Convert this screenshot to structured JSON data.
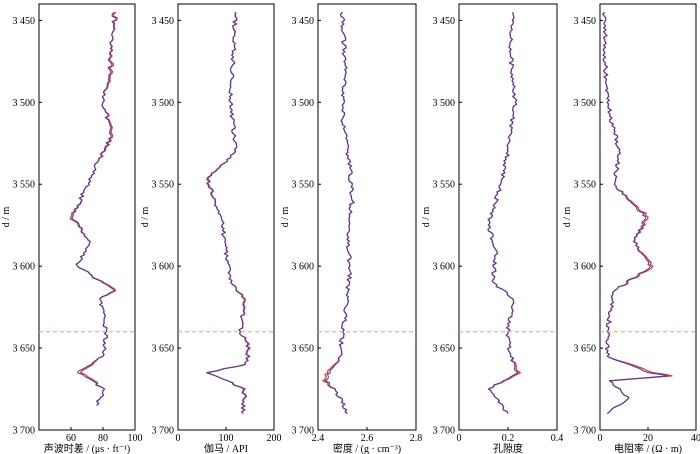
{
  "chart_data": [
    {
      "type": "line",
      "ylabel": "d / m",
      "xlabel": "声波时差 / (μs · ft⁻¹)",
      "xlim": [
        40,
        100
      ],
      "ylim": [
        3700,
        3440
      ],
      "xticks": [
        "60",
        "80",
        "100"
      ],
      "xtick_values": [
        60,
        80,
        100
      ],
      "yticks": [
        "3 450",
        "3 500",
        "3 550",
        "3 600",
        "3 650",
        "3 700"
      ],
      "ytick_values": [
        3450,
        3500,
        3550,
        3600,
        3650,
        3700
      ],
      "series": [
        {
          "color": "#e8342b",
          "d": [
            3445,
            3460,
            3480,
            3500,
            3520,
            3540,
            3555,
            3570,
            3585,
            3600,
            3615,
            3620,
            3640,
            3655,
            3665,
            3675,
            3685
          ],
          "value": [
            88,
            86,
            85,
            80,
            86,
            75,
            68,
            60,
            72,
            64,
            88,
            78,
            82,
            80,
            66,
            81,
            76
          ]
        },
        {
          "color": "#3b3fb6",
          "d": [
            3445,
            3460,
            3480,
            3500,
            3520,
            3540,
            3555,
            3570,
            3585,
            3600,
            3615,
            3620,
            3640,
            3655,
            3665,
            3675,
            3685
          ],
          "value": [
            87,
            86,
            84,
            80,
            85,
            75,
            68,
            61,
            72,
            64,
            87,
            78,
            82,
            80,
            64,
            81,
            76
          ]
        }
      ]
    },
    {
      "type": "line",
      "ylabel": "d / m",
      "xlabel": "伽马 / API",
      "xlim": [
        0,
        200
      ],
      "ylim": [
        3700,
        3440
      ],
      "xticks": [
        "0",
        "100",
        "200"
      ],
      "xtick_values": [
        0,
        100,
        200
      ],
      "yticks": [
        "3 450",
        "3 500",
        "3 550",
        "3 600",
        "3 650",
        "3 700"
      ],
      "ytick_values": [
        3450,
        3500,
        3550,
        3600,
        3650,
        3700
      ],
      "series": [
        {
          "color": "#e8342b",
          "d": [
            3445,
            3470,
            3500,
            3530,
            3547,
            3570,
            3590,
            3610,
            3620,
            3640,
            3650,
            3660,
            3665,
            3675,
            3690
          ],
          "value": [
            120,
            115,
            110,
            120,
            60,
            90,
            100,
            110,
            140,
            130,
            150,
            140,
            60,
            140,
            135
          ]
        },
        {
          "color": "#3b3fb6",
          "d": [
            3445,
            3470,
            3500,
            3530,
            3547,
            3570,
            3590,
            3610,
            3620,
            3640,
            3650,
            3660,
            3665,
            3675,
            3690
          ],
          "value": [
            119,
            115,
            110,
            120,
            62,
            90,
            100,
            110,
            138,
            130,
            148,
            140,
            60,
            138,
            135
          ]
        }
      ]
    },
    {
      "type": "line",
      "ylabel": "d / m",
      "xlabel": "密度 / (g · cm⁻³)",
      "xlim": [
        2.4,
        2.8
      ],
      "ylim": [
        3700,
        3440
      ],
      "xticks": [
        "2.4",
        "2.6",
        "2.8"
      ],
      "xtick_values": [
        2.4,
        2.6,
        2.8
      ],
      "yticks": [
        "3 450",
        "3 500",
        "3 550",
        "3 600",
        "3 650",
        "3 700"
      ],
      "ytick_values": [
        3450,
        3500,
        3550,
        3600,
        3650,
        3700
      ],
      "series": [
        {
          "color": "#e8342b",
          "d": [
            3445,
            3480,
            3510,
            3540,
            3560,
            3580,
            3600,
            3620,
            3640,
            3655,
            3665,
            3670,
            3675,
            3690
          ],
          "value": [
            2.5,
            2.51,
            2.5,
            2.53,
            2.54,
            2.52,
            2.53,
            2.52,
            2.5,
            2.49,
            2.44,
            2.42,
            2.47,
            2.52
          ]
        },
        {
          "color": "#3b3fb6",
          "d": [
            3445,
            3480,
            3510,
            3540,
            3560,
            3580,
            3600,
            3620,
            3640,
            3655,
            3665,
            3670,
            3675,
            3690
          ],
          "value": [
            2.5,
            2.51,
            2.5,
            2.53,
            2.54,
            2.52,
            2.53,
            2.52,
            2.5,
            2.49,
            2.45,
            2.43,
            2.47,
            2.52
          ]
        }
      ]
    },
    {
      "type": "line",
      "ylabel": "d / m",
      "xlabel": "孔隙度",
      "xlim": [
        0,
        0.4
      ],
      "ylim": [
        3700,
        3440
      ],
      "xticks": [
        "0",
        "0.2",
        "0.4"
      ],
      "xtick_values": [
        0,
        0.2,
        0.4
      ],
      "yticks": [
        "3 450",
        "3 500",
        "3 550",
        "3 600",
        "3 650",
        "3 700"
      ],
      "ytick_values": [
        3450,
        3500,
        3550,
        3600,
        3650,
        3700
      ],
      "series": [
        {
          "color": "#e8342b",
          "d": [
            3445,
            3470,
            3500,
            3530,
            3550,
            3575,
            3590,
            3610,
            3620,
            3640,
            3655,
            3665,
            3675,
            3690
          ],
          "value": [
            0.22,
            0.21,
            0.23,
            0.2,
            0.17,
            0.12,
            0.15,
            0.14,
            0.22,
            0.2,
            0.21,
            0.25,
            0.12,
            0.2
          ]
        },
        {
          "color": "#3b3fb6",
          "d": [
            3445,
            3470,
            3500,
            3530,
            3550,
            3575,
            3590,
            3610,
            3620,
            3640,
            3655,
            3665,
            3675,
            3690
          ],
          "value": [
            0.22,
            0.21,
            0.23,
            0.2,
            0.17,
            0.12,
            0.15,
            0.14,
            0.22,
            0.2,
            0.21,
            0.24,
            0.12,
            0.2
          ]
        }
      ]
    },
    {
      "type": "line",
      "ylabel": "d / m",
      "xlabel": "电阻率 / (Ω · m)",
      "xlim": [
        0,
        40
      ],
      "ylim": [
        3700,
        3440
      ],
      "xticks": [
        "0",
        "20",
        "40"
      ],
      "xtick_values": [
        0,
        20,
        40
      ],
      "yticks": [
        "3 450",
        "3 500",
        "3 550",
        "3 600",
        "3 650",
        "3 700"
      ],
      "ytick_values": [
        3450,
        3500,
        3550,
        3600,
        3650,
        3700
      ],
      "series": [
        {
          "color": "#e8342b",
          "d": [
            3445,
            3470,
            3500,
            3530,
            3550,
            3570,
            3585,
            3600,
            3615,
            3640,
            3655,
            3665,
            3667,
            3670,
            3680,
            3690
          ],
          "value": [
            2,
            2,
            3,
            8,
            6,
            20,
            14,
            22,
            6,
            3,
            3,
            22,
            30,
            4,
            12,
            3
          ]
        },
        {
          "color": "#3b3fb6",
          "d": [
            3445,
            3470,
            3500,
            3530,
            3550,
            3570,
            3585,
            3600,
            3615,
            3640,
            3655,
            3665,
            3667,
            3670,
            3680,
            3690
          ],
          "value": [
            2,
            2,
            3,
            8,
            6,
            19,
            14,
            21,
            6,
            3,
            3,
            20,
            28,
            4,
            12,
            3
          ]
        }
      ]
    }
  ],
  "boundary_depth": 3640,
  "boundary_color": "#f0a06a"
}
